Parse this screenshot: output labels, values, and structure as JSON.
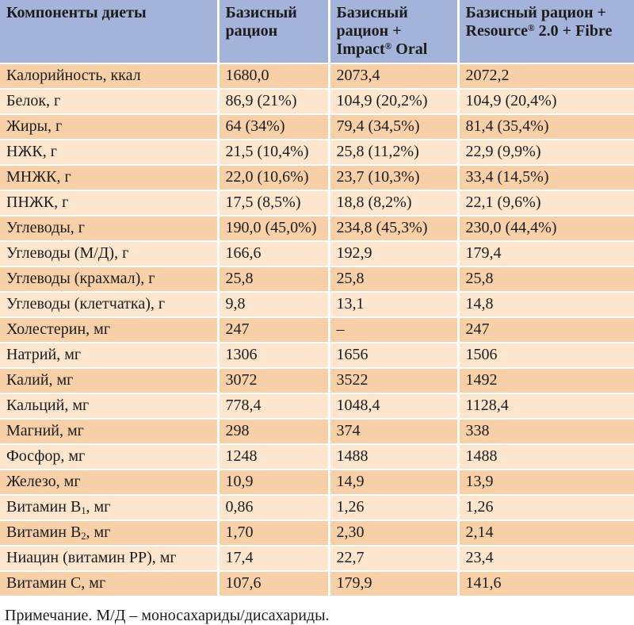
{
  "colors": {
    "header_bg": "#a4b3da",
    "row_odd_bg": "#f8d0a8",
    "row_even_bg": "#fde5ce",
    "text_color": "#1c1c1c",
    "divider_color": "#ffffff"
  },
  "table": {
    "columns": [
      {
        "pre": "Компоненты диеты",
        "reg": "",
        "post": ""
      },
      {
        "pre": "Базисный рацион",
        "reg": "",
        "post": ""
      },
      {
        "pre": "Базисный рацион + Impact",
        "reg": "®",
        "post": " Oral"
      },
      {
        "pre": "Базисный рацион + Resource",
        "reg": "®",
        "post": " 2.0 + Fibre"
      }
    ],
    "rows": [
      {
        "label": "Калорийность, ккал",
        "values": [
          "1680,0",
          "2073,4",
          "2072,2"
        ]
      },
      {
        "label": "Белок, г",
        "values": [
          "86,9 (21%)",
          "104,9 (20,2%)",
          "104,9 (20,4%)"
        ]
      },
      {
        "label": "Жиры, г",
        "values": [
          "64 (34%)",
          "79,4 (34,5%)",
          "81,4 (35,4%)"
        ]
      },
      {
        "label": "НЖК, г",
        "values": [
          "21,5 (10,4%)",
          "25,8 (11,2%)",
          "22,9 (9,9%)"
        ]
      },
      {
        "label": "МНЖК, г",
        "values": [
          "22,0 (10,6%)",
          "23,7 (10,3%)",
          "33,4 (14,5%)"
        ]
      },
      {
        "label": "ПНЖК, г",
        "values": [
          "17,5 (8,5%)",
          "18,8 (8,2%)",
          "22,1 (9,6%)"
        ]
      },
      {
        "label": "Углеводы, г",
        "values": [
          "190,0 (45,0%)",
          "234,8 (45,3%)",
          "230,0 (44,4%)"
        ]
      },
      {
        "label": "Углеводы (М/Д), г",
        "values": [
          "166,6",
          "192,9",
          "179,4"
        ]
      },
      {
        "label": "Углеводы (крахмал), г",
        "values": [
          "25,8",
          "25,8",
          "25,8"
        ]
      },
      {
        "label": "Углеводы (клетчатка), г",
        "values": [
          "9,8",
          "13,1",
          "14,8"
        ]
      },
      {
        "label": "Холестерин, мг",
        "values": [
          "247",
          "–",
          "247"
        ]
      },
      {
        "label": "Натрий, мг",
        "values": [
          "1306",
          "1656",
          "1506"
        ]
      },
      {
        "label": "Калий, мг",
        "values": [
          "3072",
          "3522",
          "1492"
        ]
      },
      {
        "label": "Кальций, мг",
        "values": [
          "778,4",
          "1048,4",
          "1128,4"
        ]
      },
      {
        "label": "Магний, мг",
        "values": [
          "298",
          "374",
          "338"
        ]
      },
      {
        "label": "Фосфор, мг",
        "values": [
          "1248",
          "1488",
          "1488"
        ]
      },
      {
        "label": "Железо, мг",
        "values": [
          "10,9",
          "14,9",
          "13,9"
        ]
      },
      {
        "label_pre": "Витамин B",
        "label_sub": "1",
        "label_post": ", мг",
        "values": [
          "0,86",
          "1,26",
          "1,26"
        ]
      },
      {
        "label_pre": "Витамин B",
        "label_sub": "2",
        "label_post": ", мг",
        "values": [
          "1,70",
          "2,30",
          "2,14"
        ]
      },
      {
        "label": "Ниацин (витамин PP), мг",
        "values": [
          "17,4",
          "22,7",
          "23,4"
        ]
      },
      {
        "label": "Витамин C, мг",
        "values": [
          "107,6",
          "179,9",
          "141,6"
        ]
      }
    ]
  },
  "note": "Примечание. М/Д – моносахариды/дисахариды."
}
